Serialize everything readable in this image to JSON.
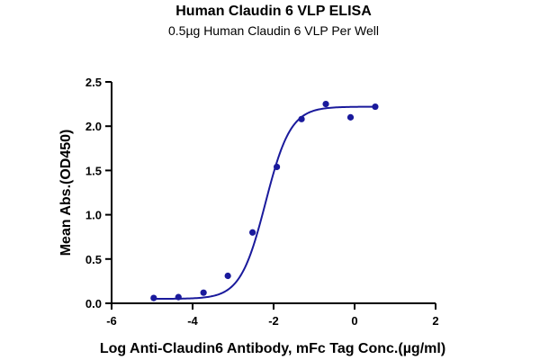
{
  "chart_data": {
    "type": "scatter",
    "title": "Human Claudin 6 VLP ELISA",
    "subtitle": "0.5µg Human Claudin 6 VLP Per Well",
    "xlabel": "Log Anti-Claudin6 Antibody, mFc Tag Conc.(µg/ml)",
    "ylabel": "Mean Abs.(OD450)",
    "xlim": [
      -6,
      2
    ],
    "ylim": [
      0,
      2.5
    ],
    "x_ticks": [
      -6,
      -4,
      -2,
      0,
      2
    ],
    "y_ticks": [
      0.0,
      0.5,
      1.0,
      1.5,
      2.0,
      2.5
    ],
    "x_tick_labels": [
      "-6",
      "-4",
      "-2",
      "0",
      "2"
    ],
    "y_tick_labels": [
      "0.0",
      "0.5",
      "1.0",
      "1.5",
      "2.0",
      "2.5"
    ],
    "grid": false,
    "color": "#1a1a9c",
    "series": [
      {
        "points": [
          {
            "x": -4.96,
            "y": 0.06
          },
          {
            "x": -4.35,
            "y": 0.07
          },
          {
            "x": -3.73,
            "y": 0.12
          },
          {
            "x": -3.13,
            "y": 0.31
          },
          {
            "x": -2.52,
            "y": 0.8
          },
          {
            "x": -1.92,
            "y": 1.54
          },
          {
            "x": -1.31,
            "y": 2.08
          },
          {
            "x": -0.71,
            "y": 2.25
          },
          {
            "x": -0.1,
            "y": 2.1
          },
          {
            "x": 0.51,
            "y": 2.22
          }
        ],
        "fit": {
          "model": "4PL",
          "bottom": 0.05,
          "top": 2.22,
          "log_ec50": -2.2,
          "hill": 1.4,
          "x_range": [
            -4.96,
            0.51
          ]
        }
      }
    ]
  }
}
